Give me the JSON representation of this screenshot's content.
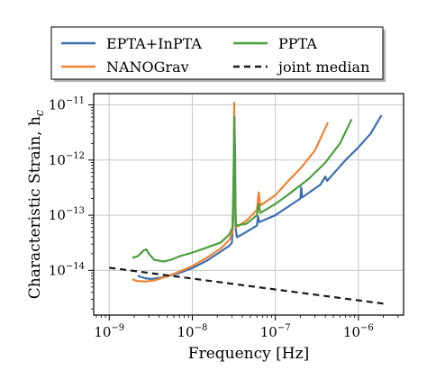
{
  "chart_data": {
    "type": "line",
    "xlabel": "Frequency [Hz]",
    "ylabel": "Characteristic Strain, h",
    "ylabel_sub": "c",
    "x_scale": "log",
    "y_scale": "log",
    "xlim": [
      6.5e-10,
      3.5e-06
    ],
    "ylim": [
      1.55e-15,
      1.6e-11
    ],
    "grid": true,
    "x_ticks": [
      {
        "value": 1e-09,
        "base": "10",
        "exp": "−9"
      },
      {
        "value": 1e-08,
        "base": "10",
        "exp": "−8"
      },
      {
        "value": 1e-07,
        "base": "10",
        "exp": "−7"
      },
      {
        "value": 1e-06,
        "base": "10",
        "exp": "−6"
      }
    ],
    "y_ticks": [
      {
        "value": 1e-14,
        "base": "10",
        "exp": "−14"
      },
      {
        "value": 1e-13,
        "base": "10",
        "exp": "−13"
      },
      {
        "value": 1e-12,
        "base": "10",
        "exp": "−12"
      },
      {
        "value": 1e-11,
        "base": "10",
        "exp": "−11"
      }
    ],
    "legend_position": "top-center, outside plot",
    "series": [
      {
        "name": "EPTA+InPTA",
        "color": "#3b6fb0",
        "dash": "",
        "points": [
          [
            2.2e-09,
            8e-15
          ],
          [
            2.7e-09,
            7.2e-15
          ],
          [
            3.2e-09,
            7e-15
          ],
          [
            4e-09,
            7.3e-15
          ],
          [
            5e-09,
            7.8e-15
          ],
          [
            7e-09,
            9e-15
          ],
          [
            1e-08,
            1.1e-14
          ],
          [
            1.5e-08,
            1.5e-14
          ],
          [
            2.2e-08,
            2.2e-14
          ],
          [
            2.8e-08,
            2.8e-14
          ],
          [
            3e-08,
            3.2e-14
          ],
          [
            3.1e-08,
            8e-14
          ],
          [
            3.17e-08,
            1.1e-12
          ],
          [
            3.22e-08,
            6e-12
          ],
          [
            3.28e-08,
            1.1e-12
          ],
          [
            3.32e-08,
            6e-14
          ],
          [
            3.45e-08,
            4e-14
          ],
          [
            4.5e-08,
            5e-14
          ],
          [
            6e-08,
            6.5e-14
          ],
          [
            6.2e-08,
            9.5e-14
          ],
          [
            6.4e-08,
            7.5e-14
          ],
          [
            1e-07,
            1e-13
          ],
          [
            2e-07,
            2e-13
          ],
          [
            2.05e-07,
            3.2e-13
          ],
          [
            2.1e-07,
            2.1e-13
          ],
          [
            3.5e-07,
            3.6e-13
          ],
          [
            4e-07,
            5e-13
          ],
          [
            4.2e-07,
            4.2e-13
          ],
          [
            7e-07,
            1e-12
          ],
          [
            1e-06,
            1.7e-12
          ],
          [
            1.4e-06,
            3e-12
          ],
          [
            1.9e-06,
            6.5e-12
          ]
        ]
      },
      {
        "name": "NANOGrav",
        "color": "#ee8434",
        "dash": "",
        "points": [
          [
            1.9e-09,
            6.9e-15
          ],
          [
            2.2e-09,
            6.4e-15
          ],
          [
            2.8e-09,
            6.3e-15
          ],
          [
            3.5e-09,
            6.6e-15
          ],
          [
            5e-09,
            7.8e-15
          ],
          [
            7e-09,
            9.5e-15
          ],
          [
            1e-08,
            1.2e-14
          ],
          [
            1.5e-08,
            1.7e-14
          ],
          [
            2.2e-08,
            2.5e-14
          ],
          [
            2.8e-08,
            3.6e-14
          ],
          [
            3.05e-08,
            5e-14
          ],
          [
            3.15e-08,
            4e-13
          ],
          [
            3.2e-08,
            1.1e-11
          ],
          [
            3.26e-08,
            4e-13
          ],
          [
            3.35e-08,
            6e-14
          ],
          [
            4.5e-08,
            8e-14
          ],
          [
            6e-08,
            1.25e-13
          ],
          [
            6.3e-08,
            2.6e-13
          ],
          [
            6.6e-08,
            1.5e-13
          ],
          [
            1e-07,
            2.3e-13
          ],
          [
            1.5e-07,
            4.5e-13
          ],
          [
            2e-07,
            7e-13
          ],
          [
            3e-07,
            1.5e-12
          ],
          [
            4.3e-07,
            4.8e-12
          ]
        ]
      },
      {
        "name": "PPTA",
        "color": "#4aa03c",
        "dash": "",
        "points": [
          [
            1.9e-09,
            1.7e-14
          ],
          [
            2.2e-09,
            1.8e-14
          ],
          [
            2.6e-09,
            2.3e-14
          ],
          [
            2.8e-09,
            2.4e-14
          ],
          [
            3e-09,
            2e-14
          ],
          [
            3.5e-09,
            1.55e-14
          ],
          [
            4.5e-09,
            1.45e-14
          ],
          [
            5.5e-09,
            1.55e-14
          ],
          [
            7e-09,
            1.8e-14
          ],
          [
            1e-08,
            2.1e-14
          ],
          [
            1.5e-08,
            2.6e-14
          ],
          [
            2.2e-08,
            3.2e-14
          ],
          [
            2.8e-08,
            4.5e-14
          ],
          [
            3.05e-08,
            6e-14
          ],
          [
            3.15e-08,
            5e-13
          ],
          [
            3.2e-08,
            6e-12
          ],
          [
            3.26e-08,
            5e-13
          ],
          [
            3.35e-08,
            6.5e-14
          ],
          [
            4.5e-08,
            7e-14
          ],
          [
            6e-08,
            1e-13
          ],
          [
            6.3e-08,
            1.6e-13
          ],
          [
            6.6e-08,
            1.1e-13
          ],
          [
            1e-07,
            1.6e-13
          ],
          [
            1.5e-07,
            2.5e-13
          ],
          [
            2.5e-07,
            4.5e-13
          ],
          [
            4e-07,
            9e-13
          ],
          [
            6e-07,
            2e-12
          ],
          [
            8.3e-07,
            5.5e-12
          ]
        ]
      },
      {
        "name": "joint median",
        "color": "#1a1a1a",
        "dash": "7,5",
        "points": [
          [
            1e-09,
            1.12e-14
          ],
          [
            2e-06,
            2.5e-15
          ]
        ]
      }
    ]
  }
}
